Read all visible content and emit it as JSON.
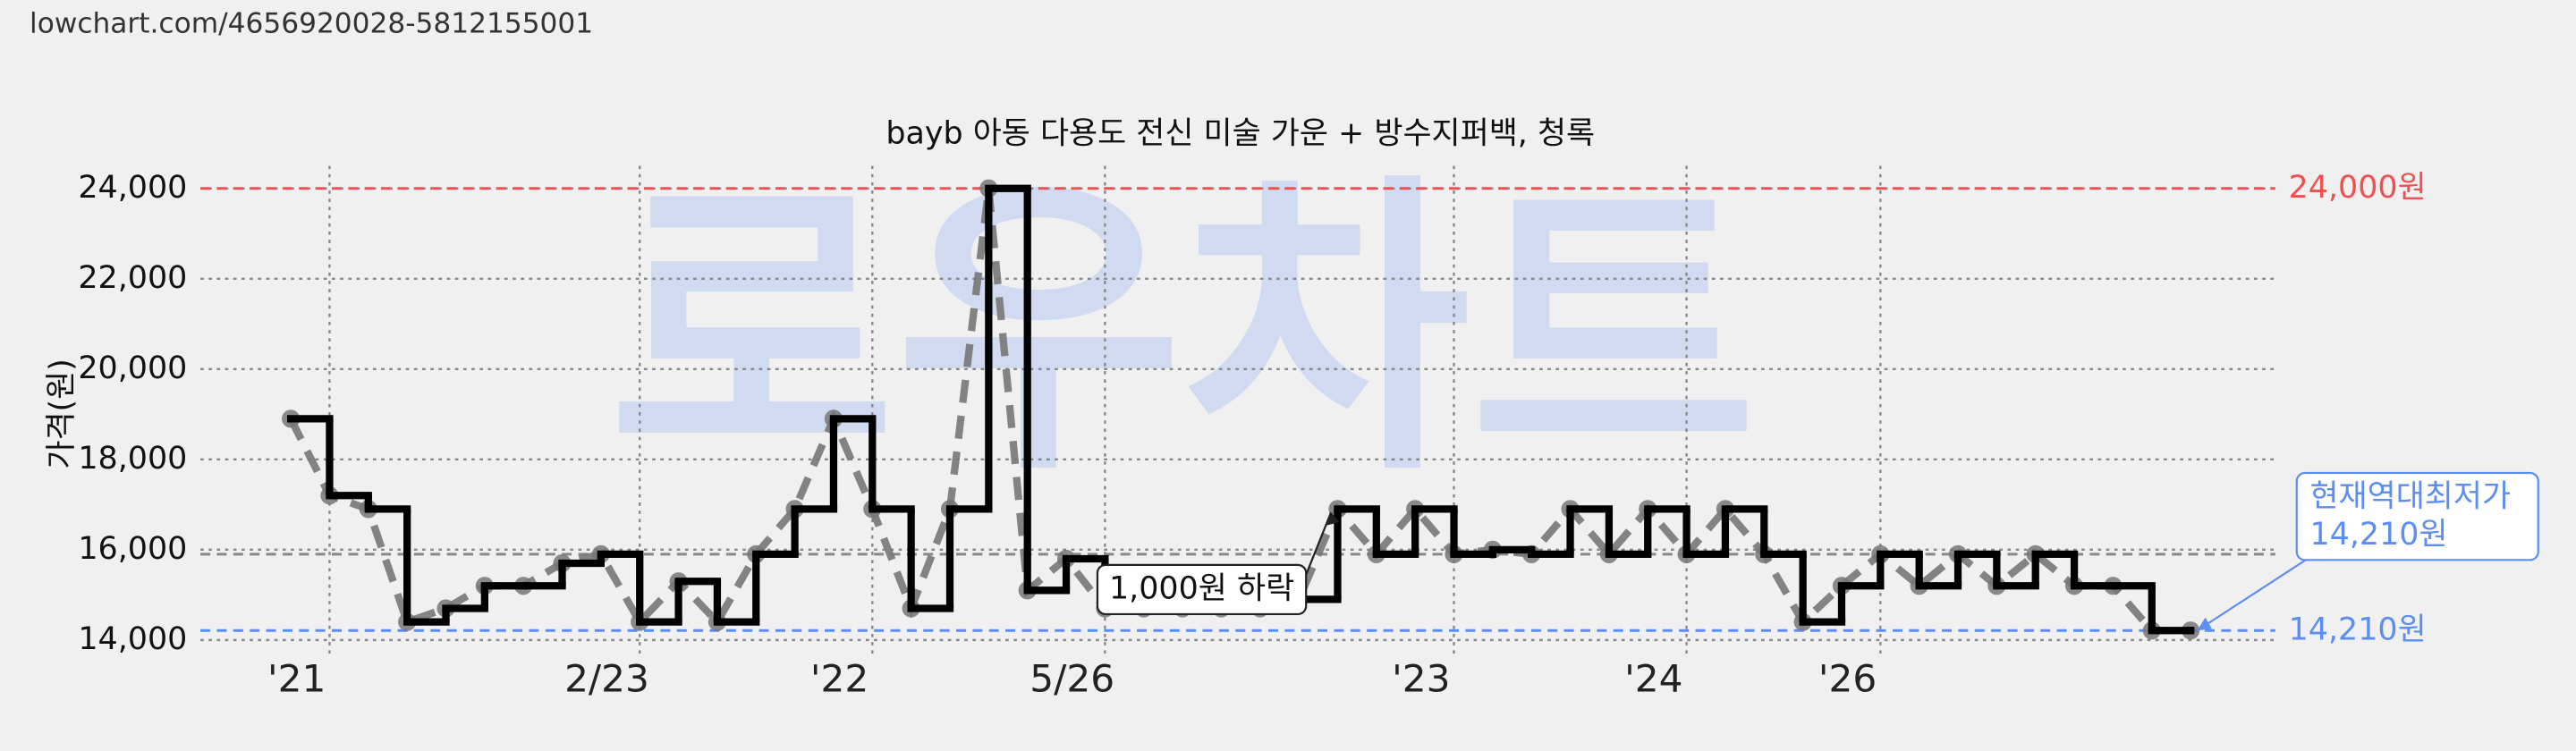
{
  "url": "lowchart.com/4656920028-5812155001",
  "chart_data": {
    "type": "step",
    "title": "bayb 아동 다용도 전신 미술 가운 + 방수지퍼백, 청록",
    "y_label": "가격(원)",
    "watermark": "로우차트",
    "categories": [
      null,
      "'21",
      null,
      null,
      null,
      null,
      null,
      null,
      null,
      "2/23",
      null,
      null,
      null,
      null,
      null,
      "'22",
      null,
      null,
      null,
      null,
      null,
      "5/26",
      null,
      null,
      null,
      null,
      null,
      null,
      null,
      null,
      "'23",
      null,
      null,
      null,
      null,
      null,
      "'24",
      null,
      null,
      null,
      null,
      "'26",
      null,
      null,
      null,
      null,
      null,
      null,
      null,
      null
    ],
    "series": [
      {
        "color": "#000000",
        "values": [
          18900,
          17200,
          16900,
          14400,
          14700,
          15200,
          15200,
          15700,
          15900,
          14400,
          15300,
          14400,
          15900,
          16900,
          18900,
          16900,
          14700,
          16900,
          24000,
          15100,
          15800,
          14700,
          14700,
          14700,
          14700,
          14700,
          14900,
          16900,
          15900,
          16900,
          15900,
          16000,
          15900,
          16900,
          15900,
          16900,
          15900,
          16900,
          15900,
          14400,
          15200,
          15900,
          15200,
          15900,
          15200,
          15900,
          15200,
          15200,
          14210,
          14210
        ]
      }
    ],
    "ylim": [
      13700,
      24500
    ],
    "yticks": [
      {
        "value": 14000,
        "label": "14,000"
      },
      {
        "value": 16000,
        "label": "16,000"
      },
      {
        "value": 18000,
        "label": "18,000"
      },
      {
        "value": 20000,
        "label": "20,000"
      },
      {
        "value": 22000,
        "label": "22,000"
      },
      {
        "value": 24000,
        "label": "24,000"
      }
    ],
    "grid": true,
    "reference_lines": [
      {
        "value": 24000,
        "label": "24,000원",
        "color": "#f05050"
      },
      {
        "value": 15900,
        "color": "#888888"
      },
      {
        "value": 14210,
        "label": "14,210원",
        "color": "#5b8ef0"
      }
    ],
    "annotations": [
      {
        "text": [
          "1,000원 하락"
        ],
        "at": 27
      },
      {
        "text": [
          "현재역대최저가",
          "14,210원"
        ],
        "at": 49
      }
    ]
  }
}
